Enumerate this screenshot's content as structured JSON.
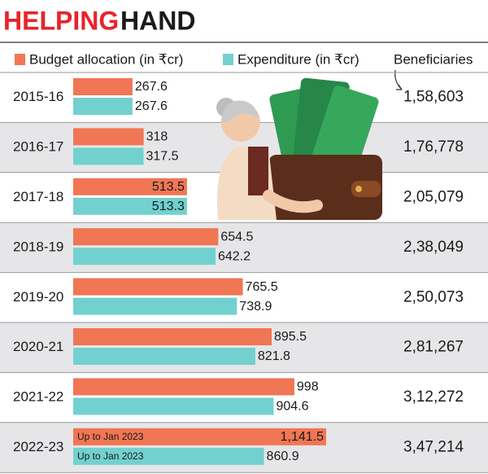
{
  "chart_data": {
    "type": "bar",
    "orientation": "horizontal",
    "title": [
      "HELPING",
      "HAND"
    ],
    "categories": [
      "2015-16",
      "2016-17",
      "2017-18",
      "2018-19",
      "2019-20",
      "2020-21",
      "2021-22",
      "2022-23"
    ],
    "series": [
      {
        "name": "Budget allocation (in ₹cr)",
        "color": "#f07654",
        "values": [
          267.6,
          318,
          513.5,
          654.5,
          765.5,
          895.5,
          998,
          1141.5
        ],
        "value_labels": [
          "267.6",
          "318",
          "513.5",
          "654.5",
          "765.5",
          "895.5",
          "998",
          "1,141.5"
        ]
      },
      {
        "name": "Expenditure (in ₹cr)",
        "color": "#72d1cf",
        "values": [
          267.6,
          317.5,
          513.3,
          642.2,
          738.9,
          821.8,
          904.6,
          860.9
        ]
      }
    ],
    "bar_notes": [
      "Up to Jan 2023",
      "Up to Jan 2023"
    ],
    "beneficiaries": {
      "name": "Beneficiaries",
      "values": [
        158603,
        176778,
        205079,
        238049,
        250073,
        281267,
        312272,
        347214
      ],
      "value_labels": [
        "1,58,603",
        "1,76,778",
        "2,05,079",
        "2,38,049",
        "2,50,073",
        "2,81,267",
        "3,12,272",
        "3,47,214"
      ]
    }
  }
}
